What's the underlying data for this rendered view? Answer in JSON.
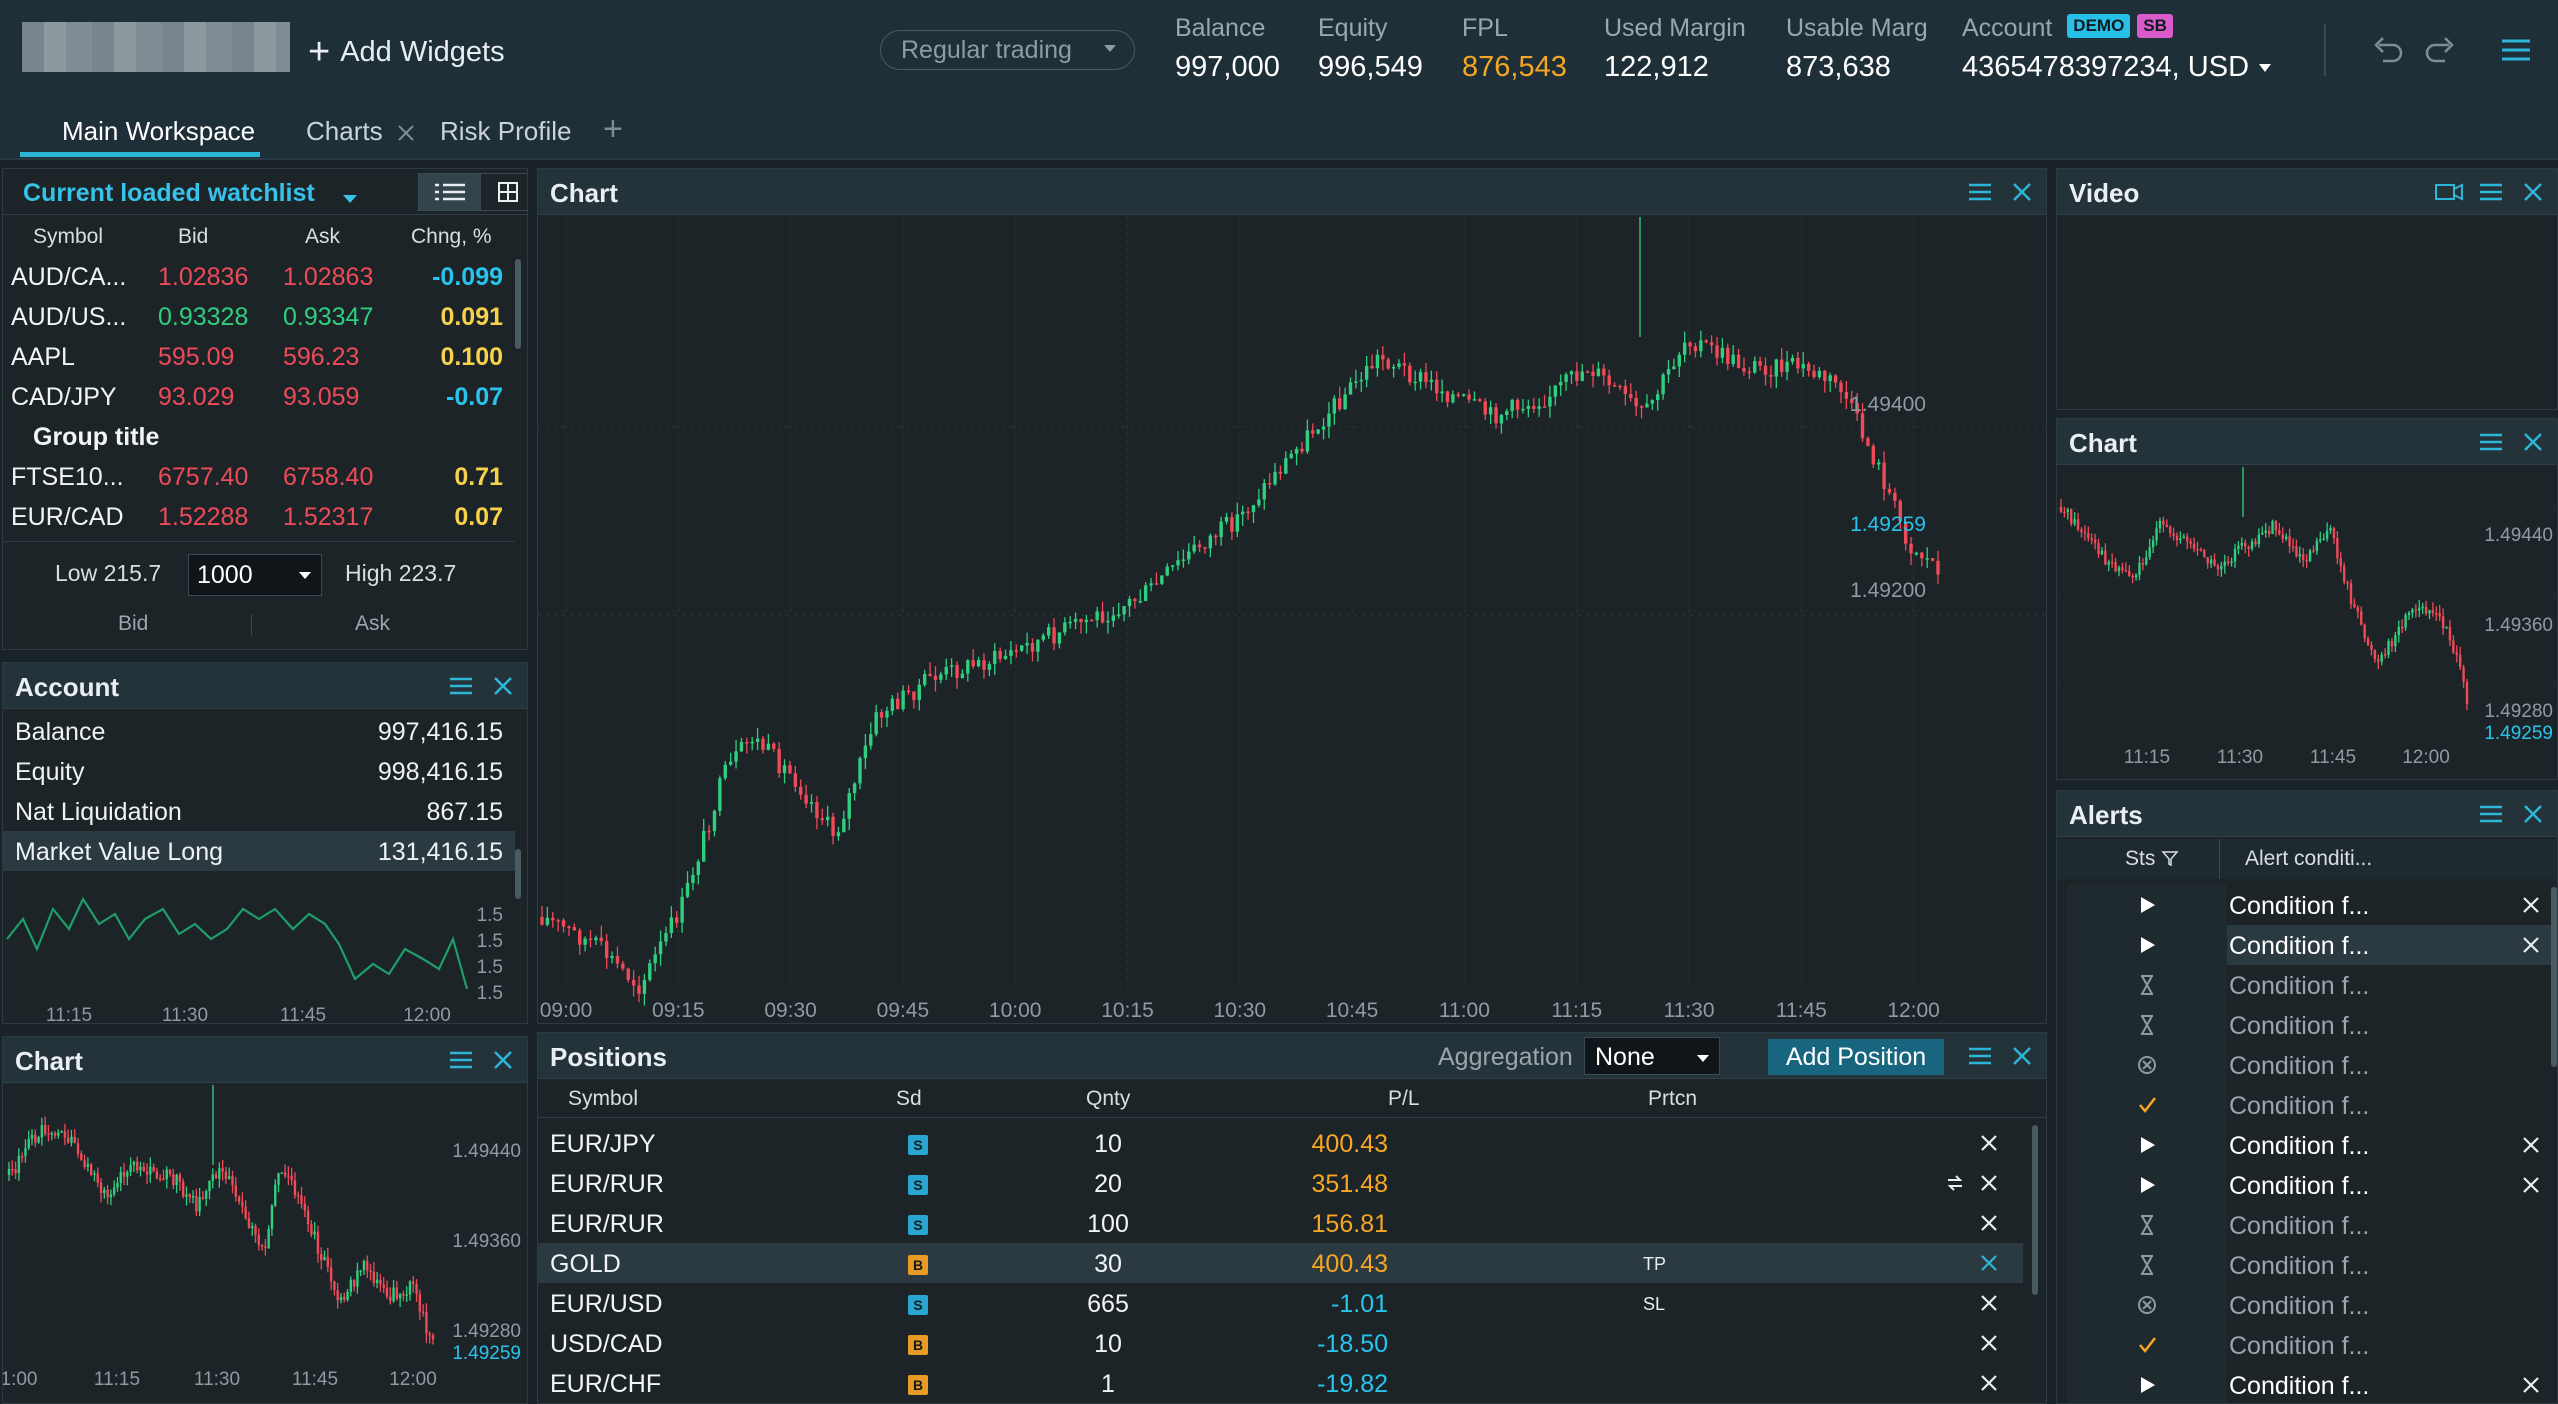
{
  "header": {
    "add_widgets": "Add Widgets",
    "trading_mode": "Regular trading",
    "metrics": [
      {
        "label": "Balance",
        "value": "997,000"
      },
      {
        "label": "Equity",
        "value": "996,549"
      },
      {
        "label": "FPL",
        "value": "876,543"
      },
      {
        "label": "Used Margin",
        "value": "122,912"
      },
      {
        "label": "Usable Marg",
        "value": "873,638"
      }
    ],
    "account_label": "Account",
    "account_value": "4365478397234, USD",
    "badge_demo": "DEMO",
    "badge_sb": "SB"
  },
  "tabs": [
    "Main Workspace",
    "Charts",
    "Risk Profile"
  ],
  "watchlist": {
    "title": "Current loaded watchlist",
    "columns": [
      "Symbol",
      "Bid",
      "Ask",
      "Chng, %"
    ],
    "rows": [
      {
        "symbol": "AUD/CA...",
        "bid": "1.02836",
        "ask": "1.02863",
        "chg": "-0.099",
        "color": "red",
        "chgColor": "cyan"
      },
      {
        "symbol": "AUD/US...",
        "bid": "0.93328",
        "ask": "0.93347",
        "chg": "0.091",
        "color": "green",
        "chgColor": "yellow"
      },
      {
        "symbol": "AAPL",
        "bid": "595.09",
        "ask": "596.23",
        "chg": "0.100",
        "color": "red",
        "chgColor": "yellow"
      },
      {
        "symbol": "CAD/JPY",
        "bid": "93.029",
        "ask": "93.059",
        "chg": "-0.07",
        "color": "red",
        "chgColor": "cyan"
      }
    ],
    "group_title": "Group title",
    "rows2": [
      {
        "symbol": "FTSE10...",
        "bid": "6757.40",
        "ask": "6758.40",
        "chg": "0.71",
        "color": "red",
        "chgColor": "yellow"
      },
      {
        "symbol": "EUR/CAD",
        "bid": "1.52288",
        "ask": "1.52317",
        "chg": "0.07",
        "color": "red",
        "chgColor": "yellow"
      }
    ],
    "low": "Low 215.7",
    "quantity": "1000",
    "high": "High 223.7",
    "bid_label": "Bid",
    "ask_label": "Ask"
  },
  "account": {
    "title": "Account",
    "rows": [
      {
        "label": "Balance",
        "value": "997,416.15"
      },
      {
        "label": "Equity",
        "value": "998,416.15"
      },
      {
        "label": "Nat Liquidation",
        "value": "867.15"
      },
      {
        "label": "Market Value Long",
        "value": "131,416.15"
      }
    ],
    "spark_ticks": [
      "1.5",
      "1.5",
      "1.5",
      "1.5"
    ],
    "spark_times": [
      "11:15",
      "11:30",
      "11:45",
      "12:00"
    ]
  },
  "main_chart": {
    "title": "Chart",
    "price_labels": [
      "1.49400",
      "1.49200"
    ],
    "last_price": "1.49259",
    "times": [
      "09:00",
      "09:15",
      "09:30",
      "09:45",
      "10:00",
      "10:15",
      "10:30",
      "10:45",
      "11:00",
      "11:15",
      "11:30",
      "11:45",
      "12:00"
    ]
  },
  "video": {
    "title": "Video"
  },
  "right_chart": {
    "title": "Chart",
    "price_labels": [
      "1.49440",
      "1.49360",
      "1.49280"
    ],
    "last_price": "1.49259",
    "times": [
      "11:15",
      "11:30",
      "11:45",
      "12:00"
    ]
  },
  "bottom_chart": {
    "title": "Chart",
    "price_labels": [
      "1.49440",
      "1.49360",
      "1.49280"
    ],
    "last_price": "1.49259",
    "times": [
      "1:00",
      "11:15",
      "11:30",
      "11:45",
      "12:00"
    ]
  },
  "positions": {
    "title": "Positions",
    "aggregation_label": "Aggregation",
    "aggregation_value": "None",
    "add_position": "Add Position",
    "columns": [
      "Symbol",
      "Sd",
      "Qnty",
      "P/L",
      "Prtcn"
    ],
    "rows": [
      {
        "symbol": "EUR/JPY",
        "side": "S",
        "qty": "10",
        "pl": "400.43",
        "prt": "",
        "plColor": "orange"
      },
      {
        "symbol": "EUR/RUR",
        "side": "S",
        "qty": "20",
        "pl": "351.48",
        "prt": "",
        "plColor": "orange"
      },
      {
        "symbol": "EUR/RUR",
        "side": "S",
        "qty": "100",
        "pl": "156.81",
        "prt": "",
        "plColor": "orange"
      },
      {
        "symbol": "GOLD",
        "side": "B",
        "qty": "30",
        "pl": "400.43",
        "prt": "TP",
        "plColor": "orange"
      },
      {
        "symbol": "EUR/USD",
        "side": "S",
        "qty": "665",
        "pl": "-1.01",
        "prt": "SL",
        "plColor": "cyan"
      },
      {
        "symbol": "USD/CAD",
        "side": "B",
        "qty": "10",
        "pl": "-18.50",
        "prt": "",
        "plColor": "cyan"
      },
      {
        "symbol": "EUR/CHF",
        "side": "B",
        "qty": "1",
        "pl": "-19.82",
        "prt": "",
        "plColor": "cyan"
      }
    ]
  },
  "alerts": {
    "title": "Alerts",
    "col_status": "Sts",
    "col_condition": "Alert conditi...",
    "rows": [
      {
        "icon": "play",
        "text": "Condition f...",
        "close": true,
        "active": true
      },
      {
        "icon": "play",
        "text": "Condition f...",
        "close": true,
        "active": true,
        "selected": true
      },
      {
        "icon": "hourglass",
        "text": "Condition f...",
        "close": false,
        "active": false
      },
      {
        "icon": "hourglass",
        "text": "Condition f...",
        "close": false,
        "active": false
      },
      {
        "icon": "cancel",
        "text": "Condition f...",
        "close": false,
        "active": false
      },
      {
        "icon": "check",
        "text": "Condition f...",
        "close": false,
        "active": false
      },
      {
        "icon": "play",
        "text": "Condition f...",
        "close": true,
        "active": true
      },
      {
        "icon": "play",
        "text": "Condition f...",
        "close": true,
        "active": true
      },
      {
        "icon": "hourglass",
        "text": "Condition f...",
        "close": false,
        "active": false
      },
      {
        "icon": "hourglass",
        "text": "Condition f...",
        "close": false,
        "active": false
      },
      {
        "icon": "cancel",
        "text": "Condition f...",
        "close": false,
        "active": false
      },
      {
        "icon": "check",
        "text": "Condition f...",
        "close": false,
        "active": false
      },
      {
        "icon": "play",
        "text": "Condition f...",
        "close": true,
        "active": true
      }
    ]
  },
  "colors": {
    "up": "#2fcf7f",
    "down": "#ef4a57",
    "accent": "#2cb6d8",
    "fpl": "#f5a623"
  }
}
